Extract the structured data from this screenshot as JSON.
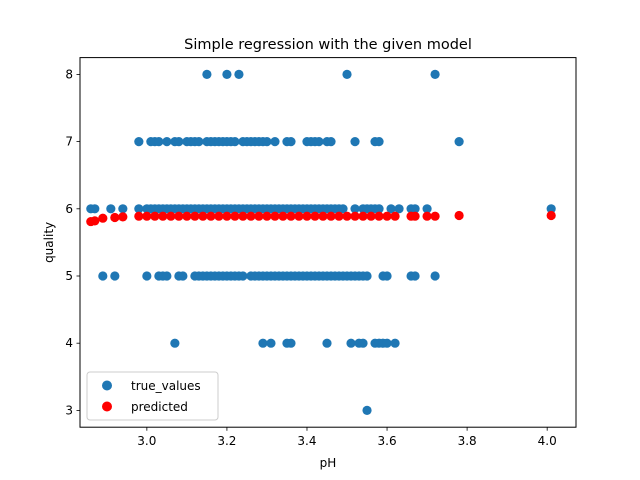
{
  "chart_data": {
    "type": "scatter",
    "title": "Simple regression with the given model",
    "xlabel": "pH",
    "ylabel": "quality",
    "xlim": [
      2.833,
      4.072
    ],
    "ylim": [
      2.75,
      8.25
    ],
    "xticks": [
      3.0,
      3.2,
      3.4,
      3.6,
      3.8,
      4.0
    ],
    "xtick_labels": [
      "3.0",
      "3.2",
      "3.4",
      "3.6",
      "3.8",
      "4.0"
    ],
    "yticks": [
      3,
      4,
      5,
      6,
      7,
      8
    ],
    "ytick_labels": [
      "3",
      "4",
      "5",
      "6",
      "7",
      "8"
    ],
    "grid": false,
    "legend_position": "lower-left",
    "series": [
      {
        "name": "true_values",
        "color": "#1f77b4",
        "points": [
          [
            3.15,
            8
          ],
          [
            3.2,
            8
          ],
          [
            3.23,
            8
          ],
          [
            3.5,
            8
          ],
          [
            3.72,
            8
          ],
          [
            2.98,
            7
          ],
          [
            3.01,
            7
          ],
          [
            3.02,
            7
          ],
          [
            3.03,
            7
          ],
          [
            3.05,
            7
          ],
          [
            3.07,
            7
          ],
          [
            3.08,
            7
          ],
          [
            3.1,
            7
          ],
          [
            3.11,
            7
          ],
          [
            3.12,
            7
          ],
          [
            3.13,
            7
          ],
          [
            3.15,
            7
          ],
          [
            3.16,
            7
          ],
          [
            3.17,
            7
          ],
          [
            3.18,
            7
          ],
          [
            3.19,
            7
          ],
          [
            3.2,
            7
          ],
          [
            3.21,
            7
          ],
          [
            3.22,
            7
          ],
          [
            3.24,
            7
          ],
          [
            3.25,
            7
          ],
          [
            3.26,
            7
          ],
          [
            3.27,
            7
          ],
          [
            3.28,
            7
          ],
          [
            3.29,
            7
          ],
          [
            3.3,
            7
          ],
          [
            3.32,
            7
          ],
          [
            3.35,
            7
          ],
          [
            3.36,
            7
          ],
          [
            3.4,
            7
          ],
          [
            3.41,
            7
          ],
          [
            3.42,
            7
          ],
          [
            3.43,
            7
          ],
          [
            3.45,
            7
          ],
          [
            3.46,
            7
          ],
          [
            3.52,
            7
          ],
          [
            3.57,
            7
          ],
          [
            3.58,
            7
          ],
          [
            3.78,
            7
          ],
          [
            2.86,
            6
          ],
          [
            2.87,
            6
          ],
          [
            2.91,
            6
          ],
          [
            2.94,
            6
          ],
          [
            2.98,
            6
          ],
          [
            3.0,
            6
          ],
          [
            3.01,
            6
          ],
          [
            3.02,
            6
          ],
          [
            3.03,
            6
          ],
          [
            3.04,
            6
          ],
          [
            3.05,
            6
          ],
          [
            3.06,
            6
          ],
          [
            3.07,
            6
          ],
          [
            3.08,
            6
          ],
          [
            3.09,
            6
          ],
          [
            3.1,
            6
          ],
          [
            3.11,
            6
          ],
          [
            3.12,
            6
          ],
          [
            3.13,
            6
          ],
          [
            3.14,
            6
          ],
          [
            3.15,
            6
          ],
          [
            3.16,
            6
          ],
          [
            3.17,
            6
          ],
          [
            3.18,
            6
          ],
          [
            3.19,
            6
          ],
          [
            3.2,
            6
          ],
          [
            3.21,
            6
          ],
          [
            3.22,
            6
          ],
          [
            3.23,
            6
          ],
          [
            3.24,
            6
          ],
          [
            3.25,
            6
          ],
          [
            3.26,
            6
          ],
          [
            3.27,
            6
          ],
          [
            3.28,
            6
          ],
          [
            3.29,
            6
          ],
          [
            3.3,
            6
          ],
          [
            3.31,
            6
          ],
          [
            3.32,
            6
          ],
          [
            3.33,
            6
          ],
          [
            3.34,
            6
          ],
          [
            3.35,
            6
          ],
          [
            3.36,
            6
          ],
          [
            3.37,
            6
          ],
          [
            3.38,
            6
          ],
          [
            3.39,
            6
          ],
          [
            3.4,
            6
          ],
          [
            3.41,
            6
          ],
          [
            3.42,
            6
          ],
          [
            3.43,
            6
          ],
          [
            3.44,
            6
          ],
          [
            3.45,
            6
          ],
          [
            3.46,
            6
          ],
          [
            3.47,
            6
          ],
          [
            3.48,
            6
          ],
          [
            3.49,
            6
          ],
          [
            3.52,
            6
          ],
          [
            3.54,
            6
          ],
          [
            3.55,
            6
          ],
          [
            3.56,
            6
          ],
          [
            3.57,
            6
          ],
          [
            3.58,
            6
          ],
          [
            3.61,
            6
          ],
          [
            3.63,
            6
          ],
          [
            3.66,
            6
          ],
          [
            3.67,
            6
          ],
          [
            3.7,
            6
          ],
          [
            4.01,
            6
          ],
          [
            2.89,
            5
          ],
          [
            2.92,
            5
          ],
          [
            3.0,
            5
          ],
          [
            3.03,
            5
          ],
          [
            3.04,
            5
          ],
          [
            3.05,
            5
          ],
          [
            3.08,
            5
          ],
          [
            3.09,
            5
          ],
          [
            3.12,
            5
          ],
          [
            3.13,
            5
          ],
          [
            3.14,
            5
          ],
          [
            3.15,
            5
          ],
          [
            3.16,
            5
          ],
          [
            3.17,
            5
          ],
          [
            3.18,
            5
          ],
          [
            3.19,
            5
          ],
          [
            3.2,
            5
          ],
          [
            3.21,
            5
          ],
          [
            3.22,
            5
          ],
          [
            3.23,
            5
          ],
          [
            3.24,
            5
          ],
          [
            3.26,
            5
          ],
          [
            3.27,
            5
          ],
          [
            3.28,
            5
          ],
          [
            3.29,
            5
          ],
          [
            3.3,
            5
          ],
          [
            3.31,
            5
          ],
          [
            3.32,
            5
          ],
          [
            3.33,
            5
          ],
          [
            3.34,
            5
          ],
          [
            3.35,
            5
          ],
          [
            3.36,
            5
          ],
          [
            3.37,
            5
          ],
          [
            3.38,
            5
          ],
          [
            3.39,
            5
          ],
          [
            3.4,
            5
          ],
          [
            3.41,
            5
          ],
          [
            3.42,
            5
          ],
          [
            3.43,
            5
          ],
          [
            3.44,
            5
          ],
          [
            3.45,
            5
          ],
          [
            3.46,
            5
          ],
          [
            3.47,
            5
          ],
          [
            3.48,
            5
          ],
          [
            3.49,
            5
          ],
          [
            3.5,
            5
          ],
          [
            3.51,
            5
          ],
          [
            3.52,
            5
          ],
          [
            3.53,
            5
          ],
          [
            3.54,
            5
          ],
          [
            3.55,
            5
          ],
          [
            3.59,
            5
          ],
          [
            3.6,
            5
          ],
          [
            3.66,
            5
          ],
          [
            3.67,
            5
          ],
          [
            3.72,
            5
          ],
          [
            3.07,
            4
          ],
          [
            3.29,
            4
          ],
          [
            3.31,
            4
          ],
          [
            3.35,
            4
          ],
          [
            3.36,
            4
          ],
          [
            3.45,
            4
          ],
          [
            3.51,
            4
          ],
          [
            3.53,
            4
          ],
          [
            3.54,
            4
          ],
          [
            3.57,
            4
          ],
          [
            3.58,
            4
          ],
          [
            3.59,
            4
          ],
          [
            3.6,
            4
          ],
          [
            3.62,
            4
          ],
          [
            3.55,
            3
          ]
        ]
      },
      {
        "name": "predicted",
        "color": "#ff0000",
        "points": [
          [
            2.86,
            5.81
          ],
          [
            2.87,
            5.82
          ],
          [
            2.89,
            5.86
          ],
          [
            2.92,
            5.87
          ],
          [
            2.94,
            5.88
          ],
          [
            2.98,
            5.89
          ],
          [
            3.0,
            5.89
          ],
          [
            3.02,
            5.89
          ],
          [
            3.04,
            5.89
          ],
          [
            3.06,
            5.89
          ],
          [
            3.08,
            5.89
          ],
          [
            3.1,
            5.89
          ],
          [
            3.12,
            5.89
          ],
          [
            3.14,
            5.89
          ],
          [
            3.16,
            5.89
          ],
          [
            3.18,
            5.89
          ],
          [
            3.2,
            5.89
          ],
          [
            3.22,
            5.89
          ],
          [
            3.24,
            5.89
          ],
          [
            3.26,
            5.89
          ],
          [
            3.28,
            5.89
          ],
          [
            3.3,
            5.89
          ],
          [
            3.32,
            5.89
          ],
          [
            3.34,
            5.89
          ],
          [
            3.36,
            5.89
          ],
          [
            3.38,
            5.89
          ],
          [
            3.4,
            5.89
          ],
          [
            3.42,
            5.89
          ],
          [
            3.44,
            5.89
          ],
          [
            3.46,
            5.89
          ],
          [
            3.48,
            5.89
          ],
          [
            3.5,
            5.89
          ],
          [
            3.52,
            5.89
          ],
          [
            3.54,
            5.89
          ],
          [
            3.56,
            5.89
          ],
          [
            3.58,
            5.89
          ],
          [
            3.6,
            5.89
          ],
          [
            3.62,
            5.89
          ],
          [
            3.66,
            5.89
          ],
          [
            3.67,
            5.89
          ],
          [
            3.7,
            5.89
          ],
          [
            3.72,
            5.89
          ],
          [
            3.78,
            5.9
          ],
          [
            4.01,
            5.9
          ]
        ]
      }
    ]
  }
}
